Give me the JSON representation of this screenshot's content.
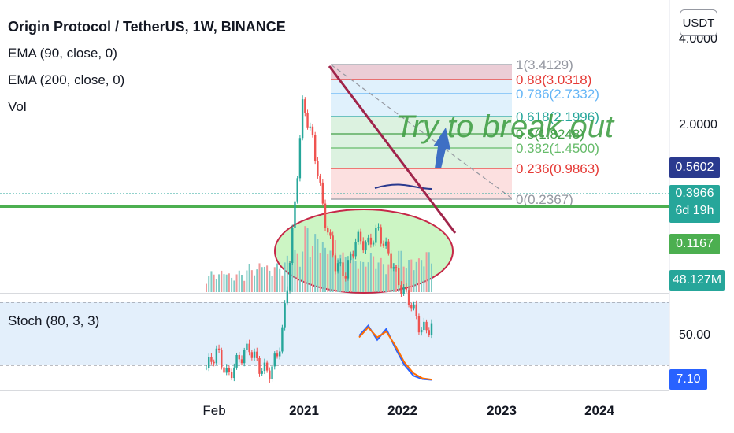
{
  "header": {
    "title": "Origin Protocol / TetherUS, 1W, BINANCE",
    "indicators": [
      "EMA (90, close, 0)",
      "EMA (200, close, 0)",
      "Vol"
    ]
  },
  "currency_button": "USDT",
  "annotation_text": "Try to break out",
  "stoch_label": "Stoch (80, 3, 3)",
  "price_tags": {
    "ema90": "0.5602",
    "last_price": "0.3966",
    "countdown": "6d 19h",
    "ema200": "0.1167",
    "volume": "48.127M",
    "stoch": "7.10"
  },
  "colors": {
    "ema90_tag": "#2a3a8f",
    "last_price_tag": "#26a69a",
    "ema200_tag": "#4caf50",
    "volume_tag": "#26a69a",
    "stoch_tag": "#2962ff",
    "trendline": "#a0244a",
    "support_line": "#4caf50",
    "annotation_text": "#43a047",
    "arrow": "#3e6fc4"
  },
  "chart_data": {
    "type": "line",
    "price_axis": {
      "scale": "log",
      "ticks": [
        "4.0000",
        "2.0000"
      ]
    },
    "time_axis": {
      "ticks": [
        {
          "label": "Feb",
          "major": false
        },
        {
          "label": "2021",
          "major": true
        },
        {
          "label": "2022",
          "major": true
        },
        {
          "label": "2023",
          "major": true
        },
        {
          "label": "2024",
          "major": true
        }
      ]
    },
    "fib_retracement": [
      {
        "level": "1",
        "price": "3.4129",
        "color": "#9598a1"
      },
      {
        "level": "0.88",
        "price": "3.0318",
        "color": "#e53935"
      },
      {
        "level": "0.786",
        "price": "2.7332",
        "color": "#64b5f6"
      },
      {
        "level": "0.618",
        "price": "2.1996",
        "color": "#26a69a"
      },
      {
        "level": "0.5",
        "price": "1.8248",
        "color": "#43a047"
      },
      {
        "level": "0.382",
        "price": "1.4500",
        "color": "#66bb6a"
      },
      {
        "level": "0.236",
        "price": "0.9863",
        "color": "#e53935"
      },
      {
        "level": "0",
        "price": "0.2367",
        "color": "#9598a1"
      }
    ],
    "price_series": {
      "name": "OGN/USDT weekly close",
      "x": [
        "2020-01",
        "2020-02",
        "2020-04",
        "2020-06",
        "2020-08",
        "2020-10",
        "2020-12",
        "2021-01",
        "2021-02",
        "2021-03",
        "2021-04",
        "2021-05",
        "2021-06",
        "2021-07",
        "2021-08",
        "2021-09",
        "2021-10",
        "2021-11",
        "2021-12",
        "2022-01",
        "2022-02",
        "2022-03"
      ],
      "close": [
        0.28,
        0.32,
        0.26,
        0.3,
        0.33,
        0.28,
        0.27,
        0.35,
        0.8,
        2.4,
        1.7,
        0.95,
        0.65,
        0.6,
        0.8,
        0.75,
        0.85,
        0.7,
        0.55,
        0.48,
        0.38,
        0.39
      ]
    },
    "stoch": {
      "series": [
        {
          "name": "K",
          "color": "#2962ff",
          "values": [
            60,
            72,
            55,
            68,
            45,
            25,
            12,
            8,
            7.1
          ]
        },
        {
          "name": "D",
          "color": "#ff6d00",
          "values": [
            58,
            70,
            58,
            65,
            48,
            28,
            15,
            9,
            7.5
          ]
        }
      ],
      "axis_ticks": [
        "50.00"
      ]
    },
    "volume_series": {
      "values": [
        0.2,
        0.3,
        0.25,
        0.35,
        0.2,
        0.3,
        0.25,
        0.4,
        0.3,
        0.5,
        0.3,
        0.4,
        0.35,
        0.5,
        0.6,
        0.5,
        1,
        0.7,
        0.9,
        0.6,
        0.8,
        0.7,
        0.5,
        0.6,
        0.5,
        0.4,
        0.55,
        0.5,
        0.45,
        0.4,
        0.5,
        0.6,
        0.4,
        0.5,
        0.45,
        0.6,
        0.5
      ]
    }
  }
}
